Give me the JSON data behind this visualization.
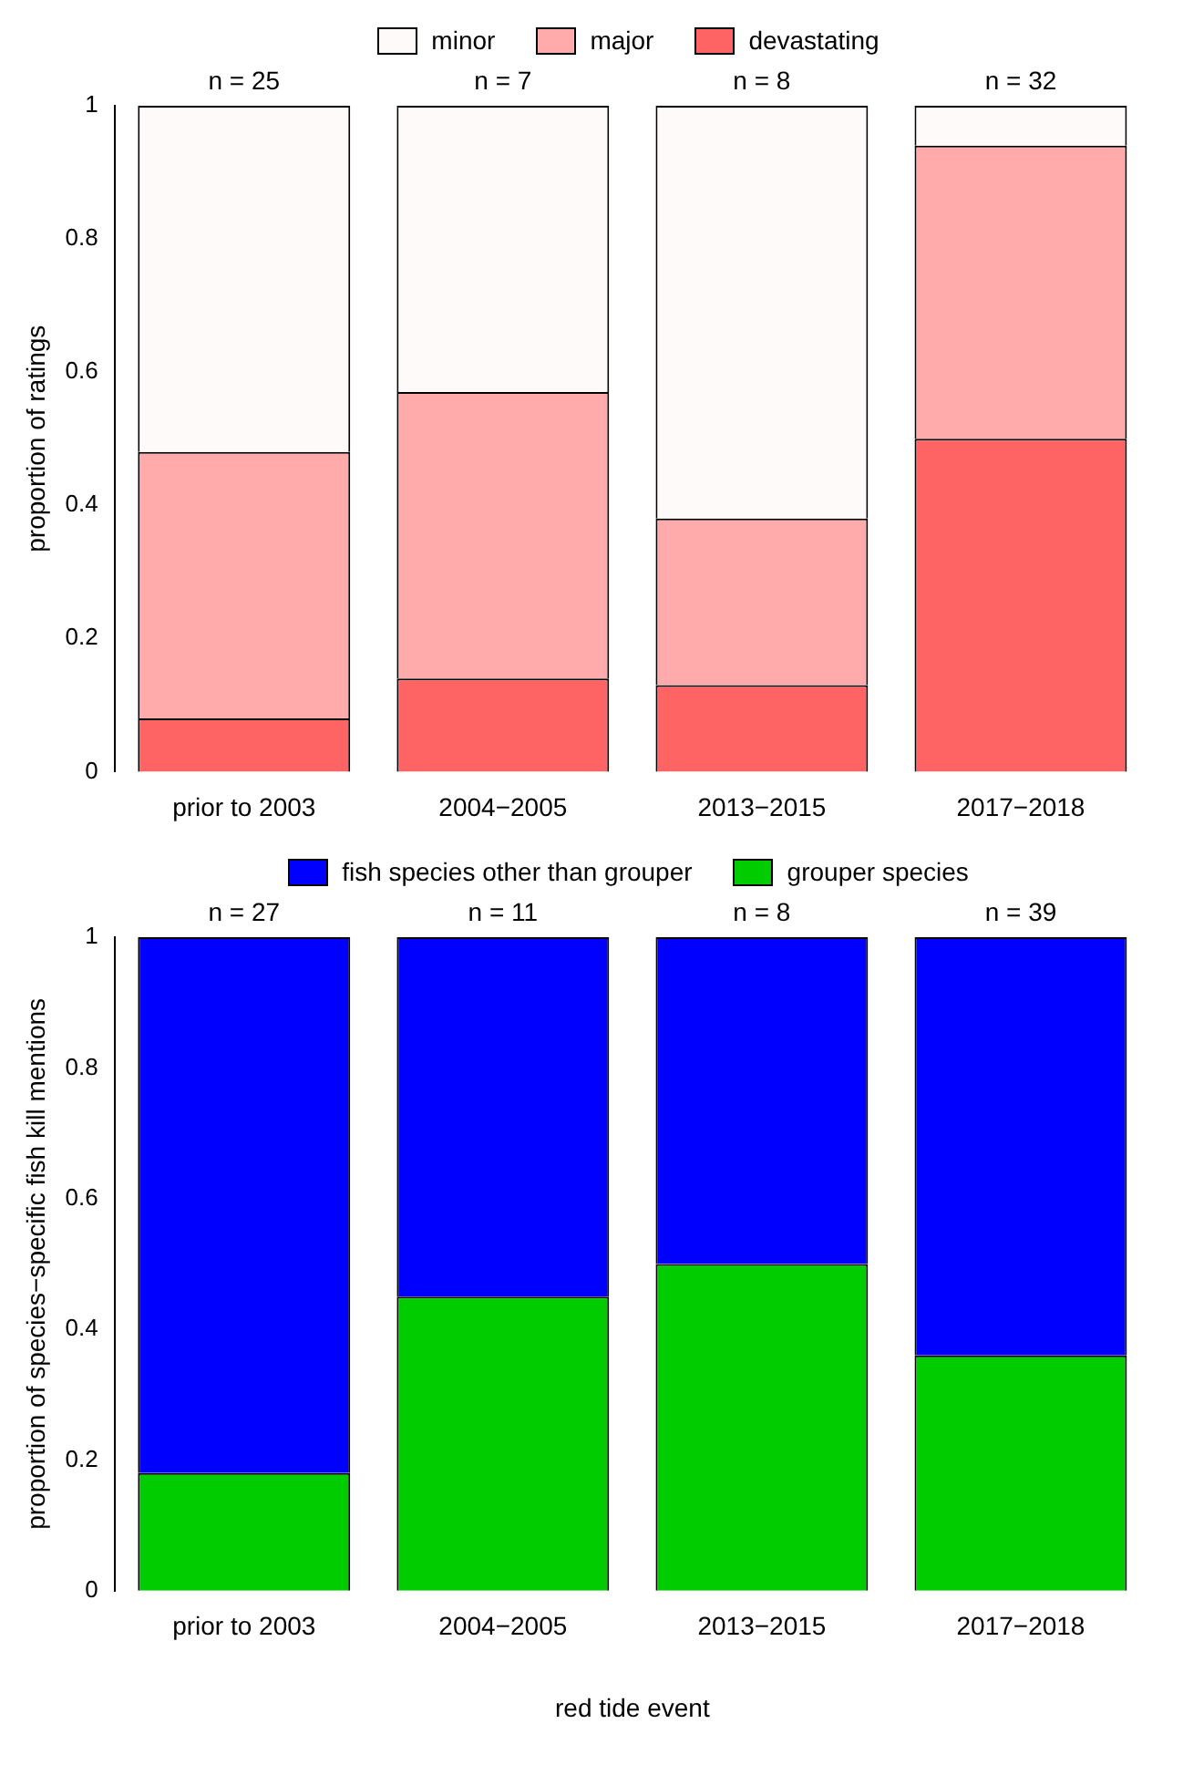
{
  "chart_data": [
    {
      "type": "bar",
      "stacked": true,
      "ylabel": "proportion of ratings",
      "legend": "top",
      "categories": [
        "prior to 2003",
        "2004−2005",
        "2013−2015",
        "2017−2018"
      ],
      "series": [
        {
          "name": "devastating",
          "color": "#ff6464",
          "values": [
            0.08,
            0.14,
            0.13,
            0.5
          ]
        },
        {
          "name": "major",
          "color": "#ffabab",
          "values": [
            0.4,
            0.43,
            0.25,
            0.44
          ]
        },
        {
          "name": "minor",
          "color": "#fffafa",
          "values": [
            0.52,
            0.43,
            0.62,
            0.06
          ]
        }
      ],
      "ylim": [
        0,
        1
      ],
      "yticks": [
        0,
        0.2,
        0.4,
        0.6,
        0.8,
        1
      ],
      "annotations": [
        {
          "text": "n = 25",
          "x": "prior to 2003",
          "y": 1
        },
        {
          "text": "n = 7",
          "x": "2004−2005",
          "y": 1
        },
        {
          "text": "n = 8",
          "x": "2013−2015",
          "y": 1
        },
        {
          "text": "n = 32",
          "x": "2017−2018",
          "y": 1
        }
      ]
    },
    {
      "type": "bar",
      "stacked": true,
      "ylabel": "proportion of species−specific fish kill mentions",
      "xlabel": "red tide event",
      "legend": "top",
      "categories": [
        "prior to 2003",
        "2004−2005",
        "2013−2015",
        "2017−2018"
      ],
      "series": [
        {
          "name": "grouper species",
          "color": "#00cc00",
          "values": [
            0.18,
            0.45,
            0.5,
            0.36
          ]
        },
        {
          "name": "fish species other than grouper",
          "color": "#0000ff",
          "values": [
            0.82,
            0.55,
            0.5,
            0.64
          ]
        }
      ],
      "ylim": [
        0,
        1
      ],
      "yticks": [
        0,
        0.2,
        0.4,
        0.6,
        0.8,
        1
      ],
      "annotations": [
        {
          "text": "n = 27",
          "x": "prior to 2003",
          "y": 1
        },
        {
          "text": "n = 11",
          "x": "2004−2005",
          "y": 1
        },
        {
          "text": "n = 8",
          "x": "2013−2015",
          "y": 1
        },
        {
          "text": "n = 39",
          "x": "2017−2018",
          "y": 1
        }
      ]
    }
  ]
}
